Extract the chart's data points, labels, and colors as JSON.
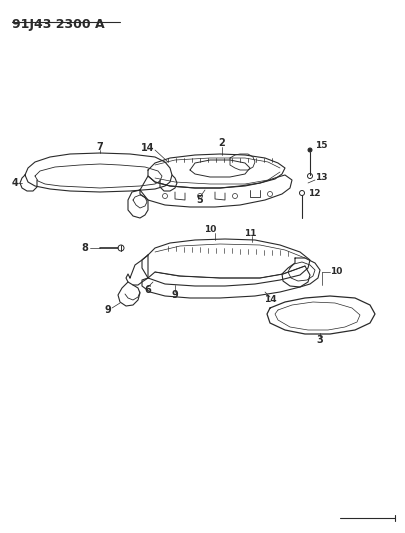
{
  "title": "91J43 2300 A",
  "bg_color": "#ffffff",
  "line_color": "#2a2a2a",
  "title_fontsize": 9,
  "label_fontsize": 7,
  "fig_w": 4.06,
  "fig_h": 5.33,
  "dpi": 100
}
